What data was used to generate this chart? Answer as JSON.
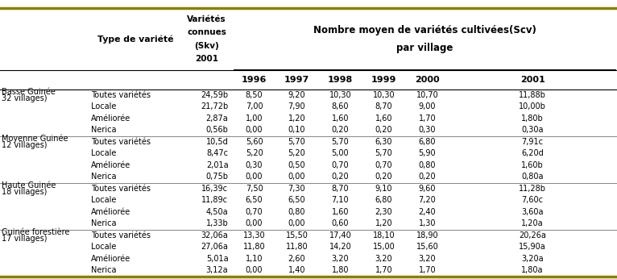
{
  "regions": [
    {
      "name_line1": "Basse Guinée",
      "name_line2": "32 villages)",
      "rows": [
        [
          "Toutes variétés",
          "24,59b",
          "8,50",
          "9,20",
          "10,30",
          "10,30",
          "10,70",
          "11,88b"
        ],
        [
          "Locale",
          "21,72b",
          "7,00",
          "7,90",
          "8,60",
          "8,70",
          "9,00",
          "10,00b"
        ],
        [
          "Améliorée",
          "2,87a",
          "1,00",
          "1,20",
          "1,60",
          "1,60",
          "1,70",
          "1,80b"
        ],
        [
          "Nerica",
          "0,56b",
          "0,00",
          "0,10",
          "0,20",
          "0,20",
          "0,30",
          "0,30a"
        ]
      ]
    },
    {
      "name_line1": "Moyenne Guinée",
      "name_line2": "12 villages)",
      "rows": [
        [
          "Toutes variétés",
          "10,5d",
          "5,60",
          "5,70",
          "5,70",
          "6,30",
          "6,80",
          "7,91c"
        ],
        [
          "Locale",
          "8,47c",
          "5,20",
          "5,20",
          "5,00",
          "5,70",
          "5,90",
          "6,20d"
        ],
        [
          "Améliorée",
          "2,01a",
          "0,30",
          "0,50",
          "0,70",
          "0,70",
          "0,80",
          "1,60b"
        ],
        [
          "Nerica",
          "0,75b",
          "0,00",
          "0,00",
          "0,20",
          "0,20",
          "0,20",
          "0,80a"
        ]
      ]
    },
    {
      "name_line1": "Haute Guinée",
      "name_line2": "18 villages)",
      "rows": [
        [
          "Toutes variétés",
          "16,39c",
          "7,50",
          "7,30",
          "8,70",
          "9,10",
          "9,60",
          "11,28b"
        ],
        [
          "Locale",
          "11,89c",
          "6,50",
          "6,50",
          "7,10",
          "6,80",
          "7,20",
          "7,60c"
        ],
        [
          "Améliorée",
          "4,50a",
          "0,70",
          "0,80",
          "1,60",
          "2,30",
          "2,40",
          "3,60a"
        ],
        [
          "Nerica",
          "1,33b",
          "0,00",
          "0,00",
          "0,60",
          "1,20",
          "1,30",
          "1,20a"
        ]
      ]
    },
    {
      "name_line1": "Guinée forestière",
      "name_line2": "17 villages)",
      "rows": [
        [
          "Toutes variétés",
          "32,06a",
          "13,30",
          "15,50",
          "17,40",
          "18,10",
          "18,90",
          "20,26a"
        ],
        [
          "Locale",
          "27,06a",
          "11,80",
          "11,80",
          "14,20",
          "15,00",
          "15,60",
          "15,90a"
        ],
        [
          "Améliorée",
          "5,01a",
          "1,10",
          "2,60",
          "3,20",
          "3,20",
          "3,20",
          "3,20a"
        ],
        [
          "Nerica",
          "3,12a",
          "0,00",
          "1,40",
          "1,80",
          "1,70",
          "1,70",
          "1,80a"
        ]
      ]
    }
  ],
  "year_labels": [
    "1996",
    "1997",
    "1998",
    "1999",
    "2000",
    "2001"
  ],
  "header_main_line1": "Nombre moyen de variétés cultivées(Scv)",
  "header_main_line2": "par village",
  "col_header_type": "Type de variété",
  "col_header_skv_line1": "Variétés",
  "col_header_skv_line2": "connues",
  "col_header_skv_line3": "(Skv)",
  "col_header_skv_line4": "2001",
  "background_color": "#ffffff",
  "text_color": "#000000",
  "line_color": "#000000",
  "accent_line_color": "#8B8000",
  "thin_line_color": "#555555"
}
